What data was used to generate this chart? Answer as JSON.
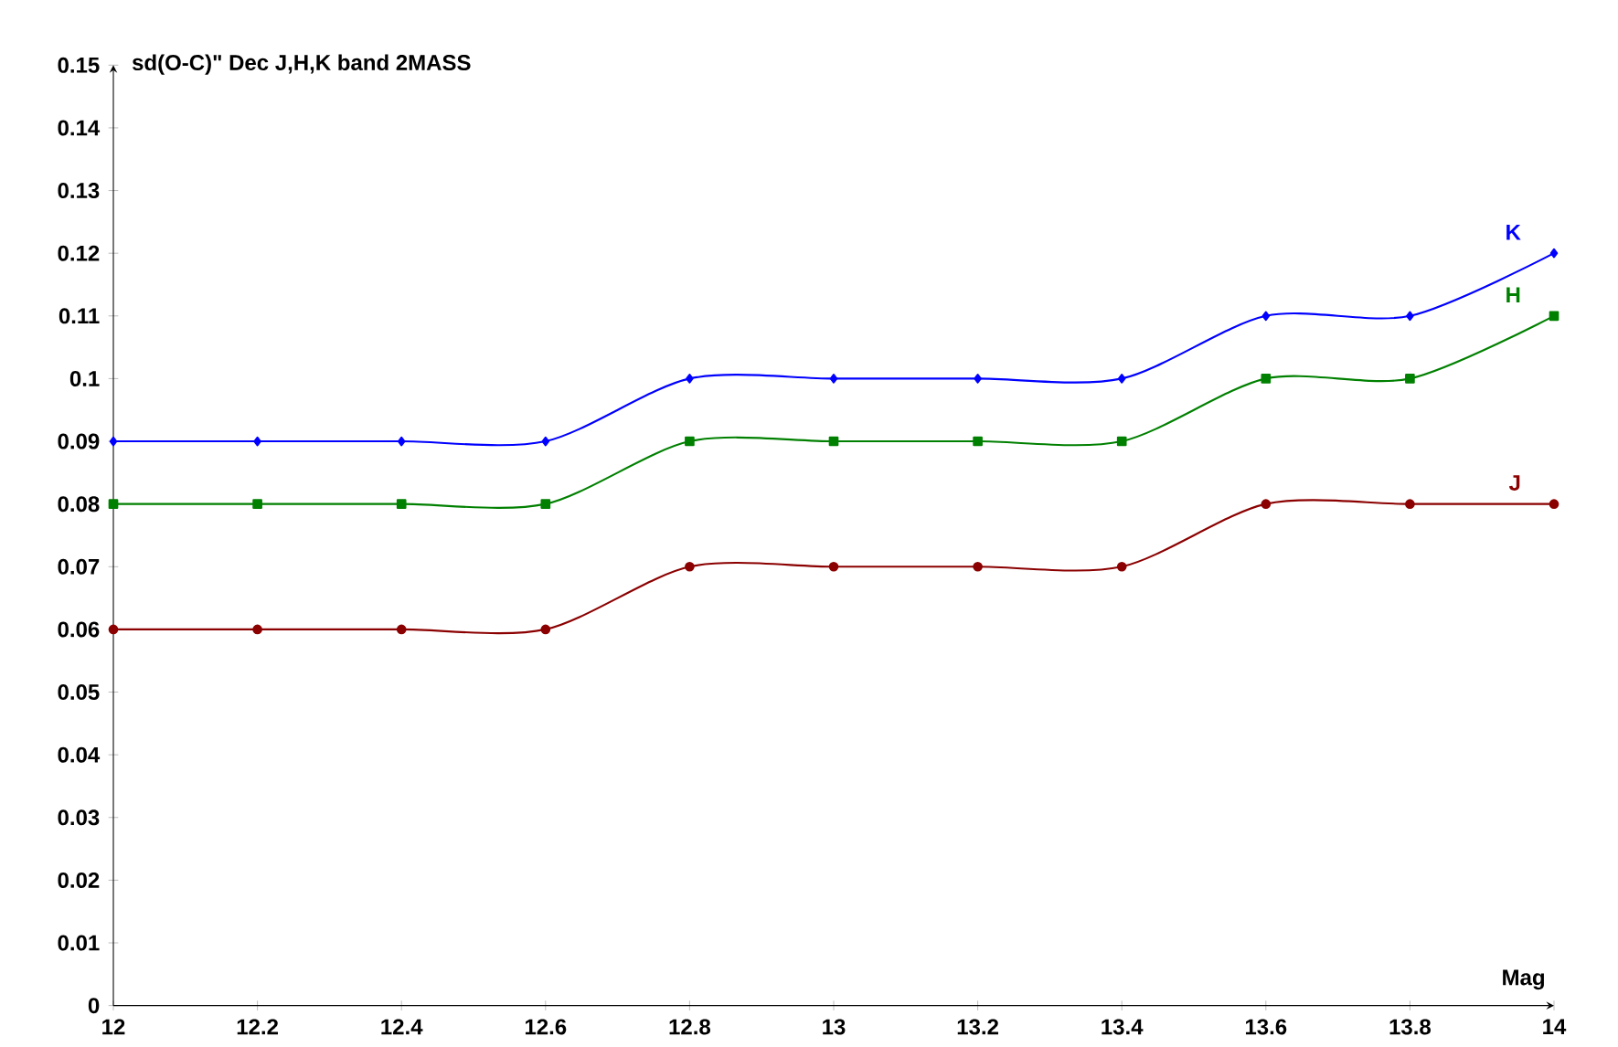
{
  "chart_data": {
    "type": "line",
    "title": "sd(O-C)\" Dec J,H,K band    2MASS",
    "xlabel": "Mag",
    "x": [
      12,
      12.2,
      12.4,
      12.6,
      12.8,
      13,
      13.2,
      13.4,
      13.6,
      13.8,
      14
    ],
    "series": [
      {
        "name": "K",
        "color": "#0000ff",
        "marker": "diamond",
        "values": [
          0.09,
          0.09,
          0.09,
          0.09,
          0.1,
          0.1,
          0.1,
          0.1,
          0.11,
          0.11,
          0.12
        ]
      },
      {
        "name": "H",
        "color": "#008000",
        "marker": "square",
        "values": [
          0.08,
          0.08,
          0.08,
          0.08,
          0.09,
          0.09,
          0.09,
          0.09,
          0.1,
          0.1,
          0.11
        ]
      },
      {
        "name": "J",
        "color": "#8b0000",
        "marker": "circle",
        "values": [
          0.06,
          0.06,
          0.06,
          0.06,
          0.07,
          0.07,
          0.07,
          0.07,
          0.08,
          0.08,
          0.08
        ]
      }
    ],
    "xlim": [
      12,
      14
    ],
    "ylim": [
      0,
      0.15
    ],
    "xticks": [
      12,
      12.2,
      12.4,
      12.6,
      12.8,
      13,
      13.2,
      13.4,
      13.6,
      13.8,
      14
    ],
    "yticks": [
      0,
      0.01,
      0.02,
      0.03,
      0.04,
      0.05,
      0.06,
      0.07,
      0.08,
      0.09,
      0.1,
      0.11,
      0.12,
      0.13,
      0.14,
      0.15
    ],
    "grid": false,
    "legend": false
  }
}
